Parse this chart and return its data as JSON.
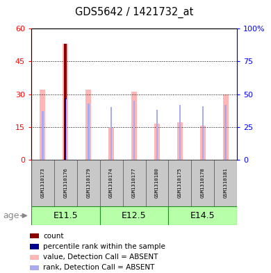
{
  "title": "GDS5642 / 1421732_at",
  "samples": [
    "GSM1310173",
    "GSM1310176",
    "GSM1310179",
    "GSM1310174",
    "GSM1310177",
    "GSM1310180",
    "GSM1310175",
    "GSM1310178",
    "GSM1310181"
  ],
  "age_groups": [
    {
      "label": "E11.5",
      "start": 0,
      "end": 2
    },
    {
      "label": "E12.5",
      "start": 3,
      "end": 5
    },
    {
      "label": "E14.5",
      "start": 6,
      "end": 8
    }
  ],
  "value_absent": [
    32,
    53,
    32,
    14.5,
    31,
    16.5,
    17,
    15.5,
    30
  ],
  "rank_absent_pct": [
    37,
    46,
    43,
    40,
    45,
    38,
    42,
    41,
    42
  ],
  "count_bar_val": 53,
  "count_bar_idx": 1,
  "count_color": "#8B0000",
  "percentile_rank_val": 47,
  "percentile_rank_idx": 1,
  "percentile_color": "#00008B",
  "value_absent_color": "#FFB6B6",
  "rank_absent_color": "#AAAAEE",
  "ylim_left": [
    0,
    60
  ],
  "ylim_right": [
    0,
    100
  ],
  "yticks_left": [
    0,
    15,
    30,
    45,
    60
  ],
  "yticks_right": [
    0,
    25,
    50,
    75,
    100
  ],
  "ytick_labels_right": [
    "0",
    "25",
    "50",
    "75",
    "100%"
  ],
  "pink_bar_width": 0.25,
  "blue_bar_width": 0.08,
  "red_bar_width": 0.12,
  "dark_blue_bar_width": 0.06,
  "age_group_color_light": "#B8FFAA",
  "age_group_color_dark": "#44CC44",
  "age_group_border": "#228B22",
  "sample_bg": "#C8C8C8",
  "legend_items": [
    {
      "color": "#8B0000",
      "label": "count"
    },
    {
      "color": "#00008B",
      "label": "percentile rank within the sample"
    },
    {
      "color": "#FFB6B6",
      "label": "value, Detection Call = ABSENT"
    },
    {
      "color": "#AAAAEE",
      "label": "rank, Detection Call = ABSENT"
    }
  ]
}
